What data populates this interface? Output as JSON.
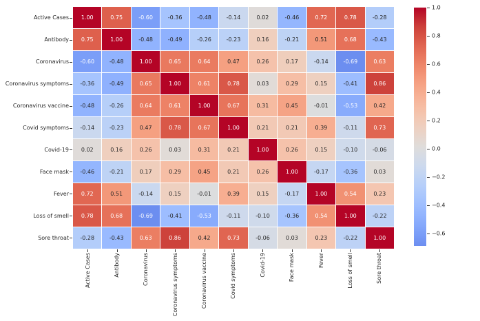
{
  "chart_data": {
    "type": "heatmap",
    "title": "",
    "xlabel": "",
    "ylabel": "",
    "grid": false,
    "legend_position": "colorbar-right",
    "categories": [
      "Active Cases",
      "Antibody",
      "Coronavirus",
      "Coronavirus symptoms",
      "Coronavirus vaccine",
      "Covid symptoms",
      "Covid-19",
      "Face mask",
      "Fever",
      "Loss of smell",
      "Sore throat"
    ],
    "matrix": [
      [
        1.0,
        0.75,
        -0.6,
        -0.36,
        -0.48,
        -0.14,
        0.02,
        -0.46,
        0.72,
        0.78,
        -0.28
      ],
      [
        0.75,
        1.0,
        -0.48,
        -0.49,
        -0.26,
        -0.23,
        0.16,
        -0.21,
        0.51,
        0.68,
        -0.43
      ],
      [
        -0.6,
        -0.48,
        1.0,
        0.65,
        0.64,
        0.47,
        0.26,
        0.17,
        -0.14,
        -0.69,
        0.63
      ],
      [
        -0.36,
        -0.49,
        0.65,
        1.0,
        0.61,
        0.78,
        0.03,
        0.29,
        0.15,
        -0.41,
        0.86
      ],
      [
        -0.48,
        -0.26,
        0.64,
        0.61,
        1.0,
        0.67,
        0.31,
        0.45,
        -0.01,
        -0.53,
        0.42
      ],
      [
        -0.14,
        -0.23,
        0.47,
        0.78,
        0.67,
        1.0,
        0.21,
        0.21,
        0.39,
        -0.11,
        0.73
      ],
      [
        0.02,
        0.16,
        0.26,
        0.03,
        0.31,
        0.21,
        1.0,
        0.26,
        0.15,
        -0.1,
        -0.06
      ],
      [
        -0.46,
        -0.21,
        0.17,
        0.29,
        0.45,
        0.21,
        0.26,
        1.0,
        -0.17,
        -0.36,
        0.03
      ],
      [
        0.72,
        0.51,
        -0.14,
        0.15,
        -0.01,
        0.39,
        0.15,
        -0.17,
        1.0,
        0.54,
        0.23
      ],
      [
        0.78,
        0.68,
        -0.69,
        -0.41,
        -0.53,
        -0.11,
        -0.1,
        -0.36,
        0.54,
        1.0,
        -0.22
      ],
      [
        -0.28,
        -0.43,
        0.63,
        0.86,
        0.42,
        0.73,
        -0.06,
        0.03,
        0.23,
        -0.22,
        1.0
      ]
    ],
    "annotation_decimals": 2,
    "colormap": "coolwarm",
    "color_scale": {
      "center": 0,
      "vmin": -0.69,
      "vmax": 1.0
    },
    "colorbar_ticks": [
      {
        "label": "1.0",
        "value": 1.0
      },
      {
        "label": "0.8",
        "value": 0.8
      },
      {
        "label": "0.6",
        "value": 0.6
      },
      {
        "label": "0.4",
        "value": 0.4
      },
      {
        "label": "0.2",
        "value": 0.2
      },
      {
        "label": "0.0",
        "value": 0.0
      },
      {
        "label": "−0.2",
        "value": -0.2
      },
      {
        "label": "−0.4",
        "value": -0.4
      },
      {
        "label": "−0.6",
        "value": -0.6
      }
    ],
    "colors": {
      "background": "#ffffff",
      "grid_line": "#ffffff",
      "tick_mark": "#333333",
      "annotation_dark": "#262626",
      "annotation_light": "#ffffff",
      "annotation_white_abs_threshold": 0.52,
      "colormap_strong_red": "#b40426",
      "colormap_strong_blue": "#3b4cc0",
      "colormap_mid": "#dddddd"
    }
  }
}
